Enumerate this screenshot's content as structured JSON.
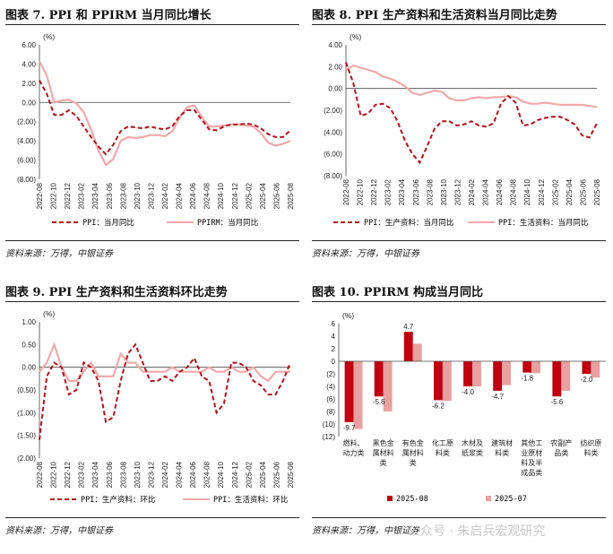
{
  "panels": [
    {
      "title": "图表 7.   PPI 和 PPIRM 当月同比增长",
      "source": "资料来源：万得，中银证券"
    },
    {
      "title": "图表 8. PPI 生产资料和生活资料当月同比走势",
      "source": "资料来源：万得，中银证券"
    },
    {
      "title": "图表 9. PPI 生产资料和生活资料环比走势",
      "source": "资料来源：万得，中银证券"
    },
    {
      "title": "图表 10. PPIRM 构成当月同比",
      "source": "资料来源：万得，中银证券"
    }
  ],
  "watermark": "公众号 · 朱启兵宏观研究",
  "colors": {
    "dark_red": "#b5121b",
    "light_pink": "#f2a8a8",
    "bar_dark": "#c00010",
    "bar_light": "#e8a0a0"
  },
  "chart_data": [
    {
      "type": "line",
      "unit_label": "(%)",
      "x_ticks": [
        "2022-08",
        "2022-10",
        "2022-12",
        "2023-02",
        "2023-04",
        "2023-06",
        "2023-08",
        "2023-10",
        "2023-12",
        "2024-02",
        "2024-04",
        "2024-06",
        "2024-08",
        "2024-10",
        "2024-12",
        "2025-02",
        "2025-04",
        "2025-06",
        "2025-08"
      ],
      "y_ticks": [
        "6.00",
        "4.00",
        "2.00",
        "0.00",
        "(2.00)",
        "(4.00)",
        "(6.00)",
        "(8.00)"
      ],
      "ylim": [
        -8,
        6
      ],
      "series": [
        {
          "name": "PPI：当月同比",
          "style": "dashed",
          "color": "#b5121b",
          "values": [
            2.3,
            0.9,
            -1.3,
            -1.3,
            -0.8,
            -1.4,
            -2.5,
            -3.6,
            -4.6,
            -5.4,
            -4.4,
            -3.0,
            -2.5,
            -2.6,
            -2.7,
            -2.5,
            -2.7,
            -2.8,
            -2.5,
            -1.4,
            -0.8,
            -0.8,
            -1.8,
            -2.8,
            -2.9,
            -2.5,
            -2.3,
            -2.3,
            -2.2,
            -2.3,
            -2.7,
            -3.3,
            -3.6,
            -3.6,
            -2.9
          ]
        },
        {
          "name": "PPIRM：当月同比",
          "style": "solid",
          "color": "#f2a8a8",
          "values": [
            4.3,
            2.8,
            0.0,
            0.2,
            0.3,
            -0.1,
            -1.0,
            -2.8,
            -5.0,
            -6.5,
            -5.9,
            -4.0,
            -3.6,
            -3.7,
            -3.6,
            -3.4,
            -3.4,
            -3.5,
            -3.0,
            -1.6,
            -0.5,
            -0.3,
            -1.5,
            -2.5,
            -2.5,
            -2.4,
            -2.3,
            -2.3,
            -2.4,
            -2.5,
            -3.2,
            -4.2,
            -4.5,
            -4.3,
            -4.0
          ]
        }
      ]
    },
    {
      "type": "line",
      "unit_label": "(%)",
      "x_ticks": [
        "2022-08",
        "2022-10",
        "2022-12",
        "2023-02",
        "2023-04",
        "2023-06",
        "2023-08",
        "2023-10",
        "2023-12",
        "2024-02",
        "2024-04",
        "2024-06",
        "2024-08",
        "2024-10",
        "2024-12",
        "2025-02",
        "2025-04",
        "2025-06",
        "2025-08"
      ],
      "y_ticks": [
        "4.00",
        "2.00",
        "0.00",
        "(2.00)",
        "(4.00)",
        "(6.00)",
        "(8.00)"
      ],
      "ylim": [
        -8,
        4
      ],
      "series": [
        {
          "name": "PPI：生产资料：当月同比",
          "style": "dashed",
          "color": "#b5121b",
          "values": [
            2.4,
            0.5,
            -2.5,
            -2.3,
            -1.5,
            -1.4,
            -1.8,
            -3.0,
            -4.8,
            -6.0,
            -6.8,
            -5.3,
            -3.7,
            -3.0,
            -3.0,
            -3.4,
            -3.3,
            -3.0,
            -3.4,
            -3.5,
            -3.2,
            -1.4,
            -0.7,
            -1.3,
            -3.4,
            -3.3,
            -2.9,
            -2.7,
            -2.6,
            -2.6,
            -2.9,
            -3.3,
            -4.3,
            -4.5,
            -3.2
          ]
        },
        {
          "name": "PPI：生活资料：当月同比",
          "style": "solid",
          "color": "#f2a8a8",
          "values": [
            1.7,
            2.1,
            1.9,
            1.7,
            1.5,
            1.1,
            0.9,
            0.6,
            0.2,
            -0.4,
            -0.6,
            -0.4,
            -0.2,
            -0.3,
            -0.9,
            -1.1,
            -1.1,
            -0.9,
            -0.8,
            -0.9,
            -0.8,
            -0.8,
            -0.7,
            -0.8,
            -1.2,
            -1.4,
            -1.4,
            -1.3,
            -1.4,
            -1.5,
            -1.5,
            -1.5,
            -1.5,
            -1.6,
            -1.7
          ]
        }
      ]
    },
    {
      "type": "line",
      "unit_label": "(%)",
      "x_ticks": [
        "2022-08",
        "2022-10",
        "2022-12",
        "2023-02",
        "2023-04",
        "2023-06",
        "2023-08",
        "2023-10",
        "2023-12",
        "2024-02",
        "2024-04",
        "2024-06",
        "2024-08",
        "2024-10",
        "2024-12",
        "2025-02",
        "2025-04",
        "2025-06",
        "2025-08"
      ],
      "y_ticks": [
        "1.00",
        "0.50",
        "0.00",
        "(0.50)",
        "(1.00)",
        "(1.50)",
        "(2.00)"
      ],
      "ylim": [
        -2,
        1
      ],
      "series": [
        {
          "name": "PPI：生产资料：环比",
          "style": "dashed",
          "color": "#b5121b",
          "values": [
            -1.6,
            -0.2,
            0.1,
            0.0,
            -0.6,
            -0.5,
            0.1,
            0.0,
            -0.3,
            -1.2,
            -1.1,
            -0.3,
            0.3,
            0.5,
            0.1,
            -0.3,
            -0.3,
            -0.2,
            -0.3,
            -0.1,
            0.0,
            0.2,
            -0.2,
            -0.3,
            -1.0,
            -0.8,
            0.1,
            0.1,
            0.0,
            -0.3,
            -0.4,
            -0.6,
            -0.6,
            -0.3,
            0.1
          ]
        },
        {
          "name": "PPI：生活资料：环比",
          "style": "solid",
          "color": "#f2a8a8",
          "values": [
            -0.1,
            0.1,
            0.5,
            0.0,
            -0.3,
            -0.3,
            -0.1,
            0.1,
            -0.2,
            -0.2,
            -0.2,
            0.3,
            0.1,
            0.1,
            -0.1,
            -0.1,
            -0.1,
            -0.1,
            0.0,
            -0.1,
            -0.1,
            -0.1,
            -0.1,
            0.0,
            -0.1,
            -0.1,
            0.0,
            -0.1,
            -0.1,
            0.0,
            -0.2,
            -0.3,
            -0.1,
            -0.1,
            -0.1
          ]
        }
      ]
    },
    {
      "type": "bar",
      "unit_label": "(%)",
      "y_ticks": [
        "6",
        "4",
        "2",
        "0",
        "(2)",
        "(4)",
        "(6)",
        "(8)",
        "(10)",
        "(12)"
      ],
      "ylim": [
        -12,
        6
      ],
      "categories": [
        [
          "燃料、",
          "动力类"
        ],
        [
          "黑色金",
          "属材料",
          "类"
        ],
        [
          "有色金",
          "属材料",
          "类"
        ],
        [
          "化工原",
          "料类"
        ],
        [
          "木材及",
          "纸浆类"
        ],
        [
          "建筑材",
          "料类"
        ],
        [
          "其他工",
          "业原材",
          "料及半",
          "成品类"
        ],
        [
          "农副产",
          "品类"
        ],
        [
          "纺织原",
          "料类"
        ]
      ],
      "series": [
        {
          "name": "2025-08",
          "color": "#c00010",
          "values": [
            -9.7,
            -5.6,
            4.7,
            -6.2,
            -4.0,
            -4.7,
            -1.8,
            -5.6,
            -2.0
          ]
        },
        {
          "name": "2025-07",
          "color": "#e8a0a0",
          "values": [
            -10.8,
            -8.0,
            2.8,
            -6.3,
            -4.0,
            -3.8,
            -1.9,
            -4.7,
            -2.6
          ]
        }
      ],
      "data_labels": [
        "-9.7",
        "-5.6",
        "4.7",
        "-6.2",
        "-4.0",
        "-4.7",
        "-1.8",
        "-5.6",
        "-2.0"
      ]
    }
  ]
}
